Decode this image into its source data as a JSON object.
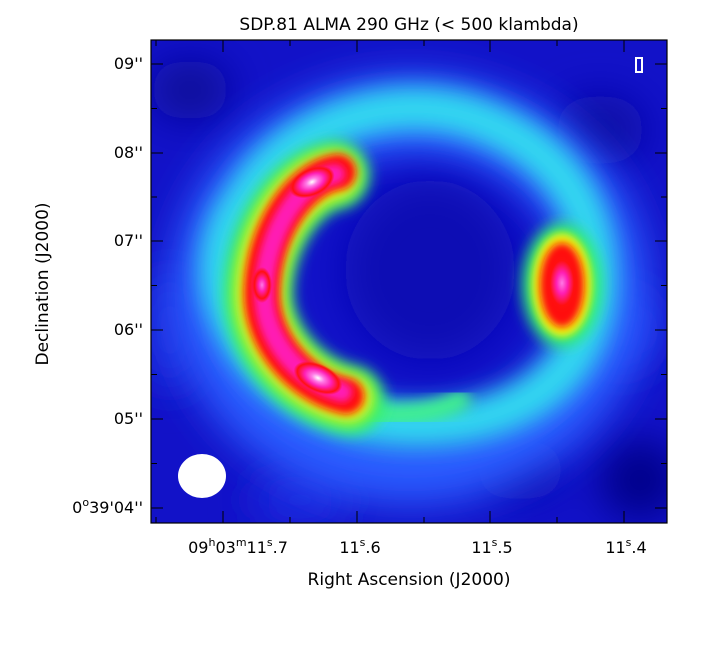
{
  "title": "SDP.81 ALMA 290 GHz (< 500 klambda)",
  "xlabel": "Right Ascension (J2000)",
  "ylabel": "Declination (J2000)",
  "x_ticks": [
    {
      "h": "09",
      "m": "03",
      "s": "11",
      "frac": ".7",
      "full": true
    },
    {
      "s": "11",
      "frac": ".6"
    },
    {
      "s": "11",
      "frac": ".5"
    },
    {
      "s": "11",
      "frac": ".4"
    }
  ],
  "y_ticks": [
    "09''",
    "08''",
    "07''",
    "06''",
    "05''"
  ],
  "y_tick_last": {
    "deg": "0",
    "min": "39",
    "sec": "04''"
  },
  "beam_color": "#ffffff",
  "image_colors": {
    "background": "#1010d0",
    "scale": [
      "#0a0aa0",
      "#1a2ee6",
      "#2f8cff",
      "#1fe0e0",
      "#30f070",
      "#f2f20a",
      "#ff7a00",
      "#ff1010",
      "#ff1fb4",
      "#ff7ae6",
      "#ffffff"
    ]
  }
}
